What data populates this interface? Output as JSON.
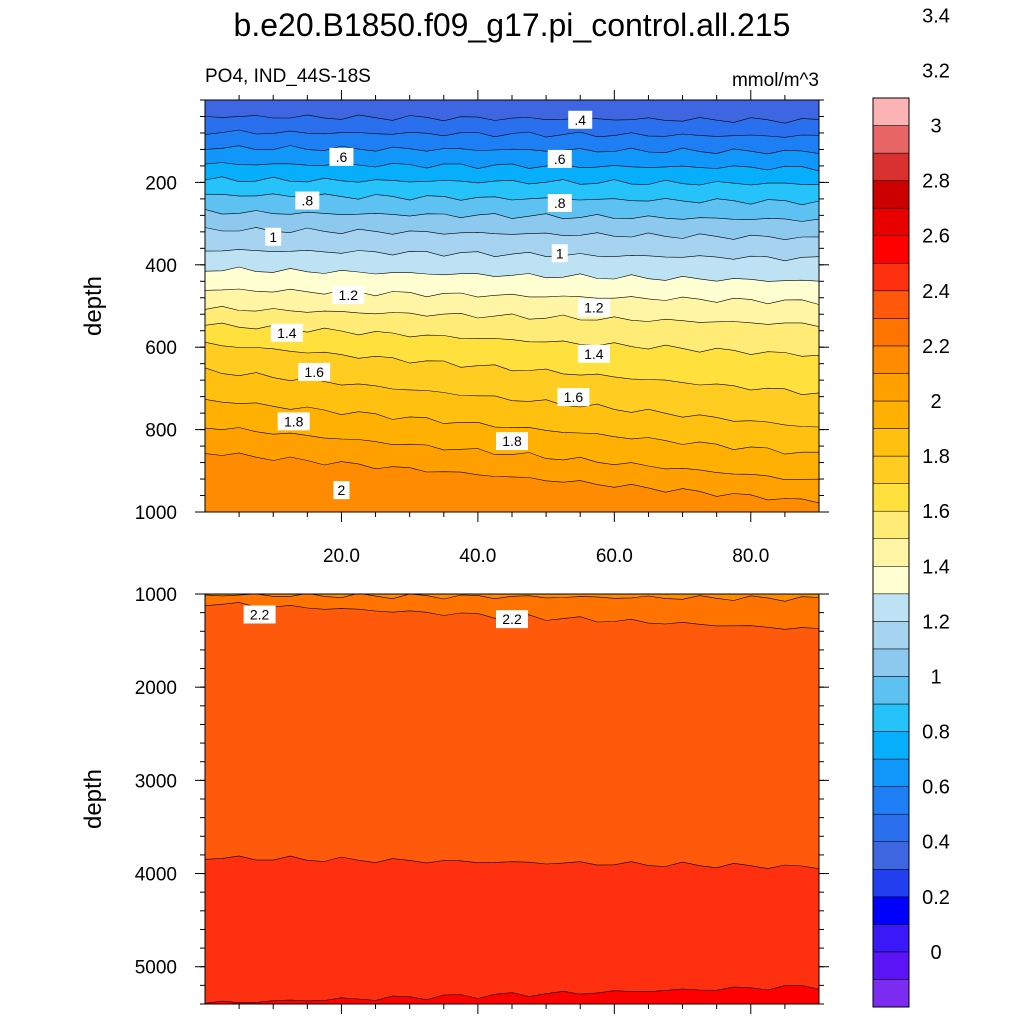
{
  "chart_data": {
    "type": "contour",
    "title": "b.e20.B1850.f09_g17.pi_control.all.215",
    "left_string": "PO4, IND_44S-18S",
    "right_string": "mmol/m^3",
    "colorbar": {
      "levels": [
        0,
        0.2,
        0.4,
        0.6,
        0.8,
        1,
        1.2,
        1.4,
        1.6,
        1.8,
        2,
        2.2,
        2.4,
        2.6,
        2.8,
        3,
        3.2,
        3.4
      ],
      "tick_labels": [
        "0",
        "0.2",
        "0.4",
        "0.6",
        "0.8",
        "1",
        "1.2",
        "1.4",
        "1.6",
        "1.8",
        "2",
        "2.2",
        "2.4",
        "2.6",
        "2.8",
        "3",
        "3.2",
        "3.4"
      ],
      "colors": [
        "#7b2cf0",
        "#5a14f5",
        "#3a18f8",
        "#0000ff",
        "#2240f0",
        "#3e66e0",
        "#2a70ee",
        "#1e7ff5",
        "#1196fa",
        "#06aefc",
        "#25c3fa",
        "#5dc1f1",
        "#8dc8ee",
        "#a5d3f0",
        "#bce2f4",
        "#ffffd2",
        "#fff5a5",
        "#ffec76",
        "#ffe03c",
        "#ffcd22",
        "#ffc00f",
        "#ffb000",
        "#ffa000",
        "#ff8c00",
        "#ff7300",
        "#ff5a0c",
        "#ff3010",
        "#ff0000",
        "#e80000",
        "#cd0000",
        "#d93030",
        "#e86666",
        "#fbb3b3"
      ]
    },
    "panels": [
      {
        "id": "upper",
        "ylabel": "depth",
        "ylim": [
          0,
          1000
        ],
        "yticks": [
          200,
          400,
          600,
          800,
          1000
        ],
        "xlim": [
          0,
          90
        ],
        "xticks": [
          20,
          40,
          60,
          80
        ],
        "xtick_labels": [
          "20.0",
          "40.0",
          "60.0",
          "80.0"
        ],
        "contour_levels": [
          0.4,
          0.5,
          0.6,
          0.7,
          0.8,
          0.9,
          1.0,
          1.1,
          1.2,
          1.3,
          1.4,
          1.5,
          1.6,
          1.7,
          1.8,
          1.9,
          2.0,
          2.1
        ],
        "contour_depth_at_x0": [
          40,
          78,
          116,
          155,
          193,
          230,
          272,
          314,
          364,
          411,
          460,
          506,
          545,
          592,
          657,
          728,
          793,
          856
        ],
        "contour_depth_at_x90": [
          50,
          88,
          126,
          165,
          204,
          248,
          291,
          335,
          385,
          440,
          490,
          545,
          620,
          712,
          795,
          860,
          925,
          975
        ],
        "labels": [
          {
            "text": ".4",
            "x": 55,
            "depth": 48
          },
          {
            "text": ".6",
            "x": 20,
            "depth": 138
          },
          {
            "text": ".6",
            "x": 52,
            "depth": 143
          },
          {
            "text": ".8",
            "x": 15,
            "depth": 244
          },
          {
            "text": ".8",
            "x": 52,
            "depth": 250
          },
          {
            "text": "1",
            "x": 10,
            "depth": 332
          },
          {
            "text": "1",
            "x": 52,
            "depth": 372
          },
          {
            "text": "1.2",
            "x": 21,
            "depth": 473
          },
          {
            "text": "1.2",
            "x": 57,
            "depth": 504
          },
          {
            "text": "1.4",
            "x": 12,
            "depth": 565
          },
          {
            "text": "1.4",
            "x": 57,
            "depth": 616
          },
          {
            "text": "1.6",
            "x": 16,
            "depth": 660
          },
          {
            "text": "1.6",
            "x": 54,
            "depth": 721
          },
          {
            "text": "1.8",
            "x": 13,
            "depth": 780
          },
          {
            "text": "1.8",
            "x": 45,
            "depth": 828
          },
          {
            "text": "2",
            "x": 20,
            "depth": 947
          }
        ]
      },
      {
        "id": "lower",
        "ylabel": "depth",
        "ylim": [
          1000,
          5400
        ],
        "yticks": [
          1000,
          2000,
          3000,
          4000,
          5000
        ],
        "xlim": [
          0,
          90
        ],
        "xticks": [
          20,
          40,
          60,
          80
        ],
        "contour_levels": [
          2.2,
          2.3,
          2.4,
          2.5
        ],
        "contour_depth_at_x0": [
          1010,
          1100,
          3830,
          5390
        ],
        "contour_depth_at_x90": [
          1050,
          1380,
          3930,
          5210
        ],
        "labels": [
          {
            "text": "2.2",
            "x": 8,
            "depth": 1220
          },
          {
            "text": "2.2",
            "x": 45,
            "depth": 1270
          }
        ]
      }
    ]
  }
}
